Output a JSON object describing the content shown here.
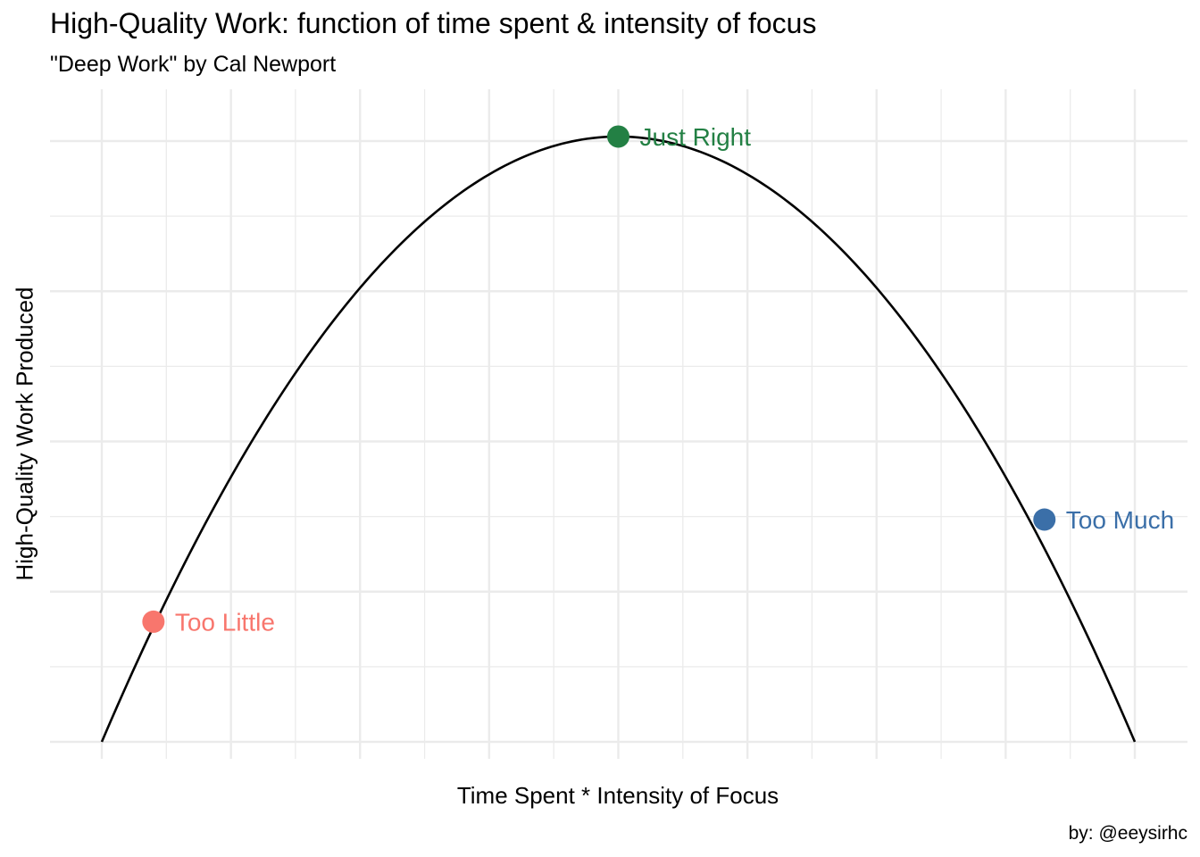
{
  "chart_data": {
    "type": "line",
    "title": "High-Quality Work: function of time spent & intensity of focus",
    "subtitle": "\"Deep Work\" by Cal Newport",
    "xlabel": "Time Spent * Intensity of Focus",
    "ylabel": "High-Quality Work Produced",
    "caption": "by: @eeysirhc",
    "xlim": [
      0,
      8
    ],
    "ylim": [
      0,
      4
    ],
    "grid": true,
    "x_ticks_labeled": false,
    "y_ticks_labeled": false,
    "curve": {
      "shape": "inverted parabola",
      "x_start": 0,
      "x_end": 8,
      "x_peak": 4,
      "y_peak": 4.03,
      "color": "#000000"
    },
    "points": [
      {
        "label": "Too Little",
        "x": 0.4,
        "y": 0.8,
        "color": "#F8766D"
      },
      {
        "label": "Just Right",
        "x": 4.0,
        "y": 4.03,
        "color": "#238044"
      },
      {
        "label": "Too Much",
        "x": 7.3,
        "y": 1.48,
        "color": "#3B6FA8"
      }
    ]
  }
}
